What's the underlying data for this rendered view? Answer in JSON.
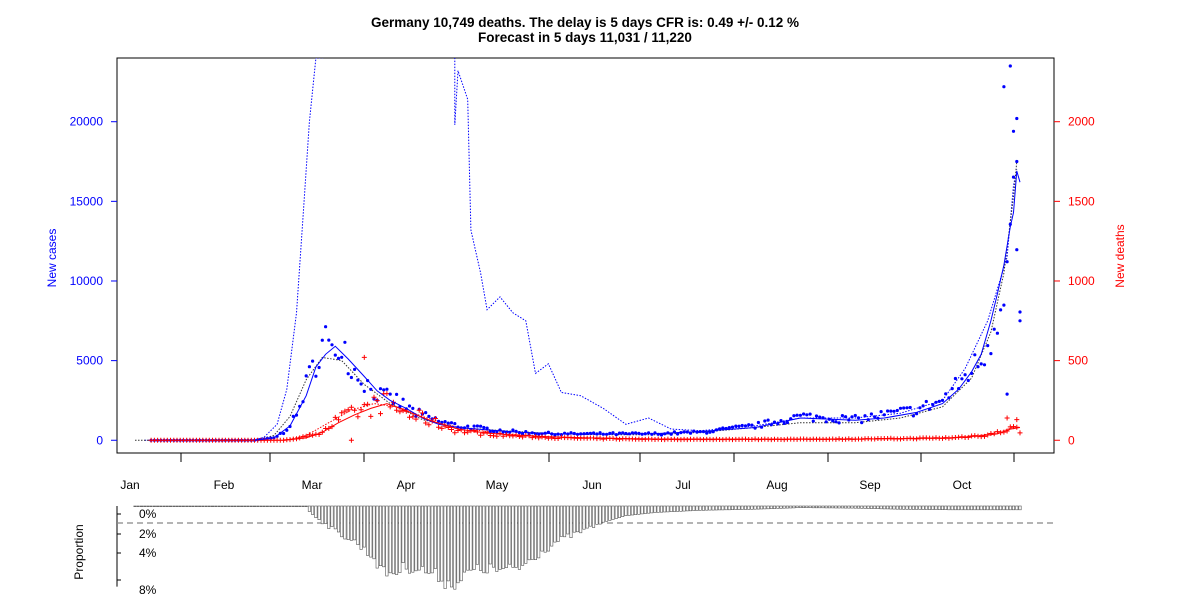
{
  "colors": {
    "cases": "#0000ff",
    "deaths": "#ff0000",
    "axis": "#000000",
    "bars": "#777777"
  },
  "chart_data": [
    {
      "type": "line",
      "title": "Germany 10,749 deaths. The delay is 5 days CFR is: 0.49 +/- 0.12 %",
      "subtitle": "Forecast in 5 days 11,031 / 11,220",
      "ylabel_left": "New cases",
      "ylabel_right": "New deaths",
      "x_range": [
        "2020-01-22",
        "2020-10-22"
      ],
      "y_left_range": [
        -800,
        24000
      ],
      "y_right_range": [
        -80,
        2400
      ],
      "y_left_ticks": [
        0,
        5000,
        10000,
        15000,
        20000
      ],
      "y_right_ticks": [
        0,
        500,
        1000,
        1500,
        2000
      ],
      "x_tick_labels": [
        "Jan",
        "Feb",
        "Mar",
        "Apr",
        "May",
        "Jun",
        "Jul",
        "Aug",
        "Sep",
        "Oct"
      ],
      "cases_anchors": [
        [
          "2020-01-27",
          0
        ],
        [
          "2020-02-28",
          0
        ],
        [
          "2020-03-05",
          150
        ],
        [
          "2020-03-08",
          500
        ],
        [
          "2020-03-12",
          1500
        ],
        [
          "2020-03-15",
          3500
        ],
        [
          "2020-03-18",
          5000
        ],
        [
          "2020-03-21",
          6500
        ],
        [
          "2020-03-23",
          5200
        ],
        [
          "2020-03-26",
          6500
        ],
        [
          "2020-03-29",
          4500
        ],
        [
          "2020-04-01",
          4000
        ],
        [
          "2020-04-04",
          3200
        ],
        [
          "2020-04-07",
          2800
        ],
        [
          "2020-04-12",
          2500
        ],
        [
          "2020-04-18",
          1700
        ],
        [
          "2020-04-25",
          1200
        ],
        [
          "2020-05-01",
          900
        ],
        [
          "2020-05-10",
          700
        ],
        [
          "2020-05-20",
          500
        ],
        [
          "2020-06-01",
          400
        ],
        [
          "2020-06-15",
          400
        ],
        [
          "2020-07-01",
          400
        ],
        [
          "2020-07-15",
          500
        ],
        [
          "2020-08-01",
          900
        ],
        [
          "2020-08-15",
          1500
        ],
        [
          "2020-09-01",
          1300
        ],
        [
          "2020-09-10",
          1600
        ],
        [
          "2020-09-20",
          1900
        ],
        [
          "2020-09-28",
          2500
        ],
        [
          "2020-10-03",
          3500
        ],
        [
          "2020-10-07",
          4500
        ],
        [
          "2020-10-10",
          5000
        ],
        [
          "2020-10-13",
          6500
        ],
        [
          "2020-10-15",
          8000
        ],
        [
          "2020-10-17",
          10000
        ],
        [
          "2020-10-19",
          13000
        ],
        [
          "2020-10-20",
          15000
        ],
        [
          "2020-10-21",
          12000
        ],
        [
          "2020-10-22",
          7500
        ]
      ],
      "cases_outliers": [
        [
          "2020-10-17",
          22200
        ],
        [
          "2020-10-19",
          23500
        ],
        [
          "2020-10-20",
          19400
        ],
        [
          "2020-10-21",
          20200
        ],
        [
          "2020-10-21",
          17500
        ],
        [
          "2020-10-22",
          7500
        ],
        [
          "2020-10-18",
          2900
        ]
      ],
      "cases_smooth": [
        [
          "2020-02-28",
          0
        ],
        [
          "2020-03-05",
          150
        ],
        [
          "2020-03-10",
          900
        ],
        [
          "2020-03-15",
          2800
        ],
        [
          "2020-03-18",
          4600
        ],
        [
          "2020-03-21",
          5400
        ],
        [
          "2020-03-24",
          5900
        ],
        [
          "2020-03-28",
          5100
        ],
        [
          "2020-04-02",
          4000
        ],
        [
          "2020-04-06",
          3100
        ],
        [
          "2020-04-10",
          2500
        ],
        [
          "2020-04-15",
          2000
        ],
        [
          "2020-04-20",
          1400
        ],
        [
          "2020-04-25",
          1000
        ],
        [
          "2020-05-01",
          800
        ],
        [
          "2020-05-10",
          650
        ],
        [
          "2020-05-20",
          500
        ],
        [
          "2020-06-01",
          400
        ],
        [
          "2020-06-15",
          380
        ],
        [
          "2020-07-01",
          420
        ],
        [
          "2020-07-15",
          550
        ],
        [
          "2020-08-01",
          800
        ],
        [
          "2020-08-15",
          1400
        ],
        [
          "2020-09-01",
          1250
        ],
        [
          "2020-09-10",
          1400
        ],
        [
          "2020-09-20",
          1750
        ],
        [
          "2020-09-28",
          2300
        ],
        [
          "2020-10-03",
          3200
        ],
        [
          "2020-10-07",
          4300
        ],
        [
          "2020-10-10",
          5400
        ],
        [
          "2020-10-13",
          7500
        ],
        [
          "2020-10-15",
          9200
        ],
        [
          "2020-10-17",
          11000
        ],
        [
          "2020-10-19",
          13400
        ],
        [
          "2020-10-20",
          14300
        ],
        [
          "2020-10-21",
          16900
        ],
        [
          "2020-10-22",
          16200
        ]
      ],
      "deaths_anchors": [
        [
          "2020-01-27",
          0
        ],
        [
          "2020-03-08",
          0
        ],
        [
          "2020-03-15",
          20
        ],
        [
          "2020-03-20",
          60
        ],
        [
          "2020-03-25",
          130
        ],
        [
          "2020-03-30",
          170
        ],
        [
          "2020-04-03",
          200
        ],
        [
          "2020-04-08",
          240
        ],
        [
          "2020-04-12",
          200
        ],
        [
          "2020-04-16",
          160
        ],
        [
          "2020-04-20",
          140
        ],
        [
          "2020-04-25",
          100
        ],
        [
          "2020-05-01",
          60
        ],
        [
          "2020-05-10",
          40
        ],
        [
          "2020-05-20",
          25
        ],
        [
          "2020-06-01",
          15
        ],
        [
          "2020-06-15",
          10
        ],
        [
          "2020-07-01",
          6
        ],
        [
          "2020-07-15",
          5
        ],
        [
          "2020-08-01",
          6
        ],
        [
          "2020-08-15",
          6
        ],
        [
          "2020-09-01",
          8
        ],
        [
          "2020-09-15",
          10
        ],
        [
          "2020-10-01",
          15
        ],
        [
          "2020-10-10",
          30
        ],
        [
          "2020-10-15",
          45
        ],
        [
          "2020-10-19",
          80
        ],
        [
          "2020-10-22",
          60
        ]
      ],
      "deaths_outliers": [
        [
          "2020-04-02",
          520
        ],
        [
          "2020-03-29",
          0
        ],
        [
          "2020-10-18",
          140
        ],
        [
          "2020-10-21",
          130
        ]
      ],
      "deaths_smooth": [
        [
          "2020-03-08",
          0
        ],
        [
          "2020-03-15",
          15
        ],
        [
          "2020-03-20",
          50
        ],
        [
          "2020-03-25",
          110
        ],
        [
          "2020-03-30",
          160
        ],
        [
          "2020-04-04",
          200
        ],
        [
          "2020-04-09",
          230
        ],
        [
          "2020-04-13",
          200
        ],
        [
          "2020-04-18",
          160
        ],
        [
          "2020-04-23",
          120
        ],
        [
          "2020-05-01",
          70
        ],
        [
          "2020-05-10",
          45
        ],
        [
          "2020-05-20",
          30
        ],
        [
          "2020-06-01",
          20
        ],
        [
          "2020-06-15",
          12
        ],
        [
          "2020-07-01",
          8
        ],
        [
          "2020-08-01",
          6
        ],
        [
          "2020-09-01",
          7
        ],
        [
          "2020-10-01",
          14
        ],
        [
          "2020-10-10",
          28
        ],
        [
          "2020-10-15",
          40
        ],
        [
          "2020-10-19",
          70
        ],
        [
          "2020-10-22",
          80
        ]
      ],
      "forecast_dotted_blue": [
        [
          "2020-01-25",
          0
        ],
        [
          "2020-02-28",
          0
        ],
        [
          "2020-03-02",
          200
        ],
        [
          "2020-03-06",
          1000
        ],
        [
          "2020-03-09",
          3200
        ],
        [
          "2020-03-12",
          8000
        ],
        [
          "2020-03-14",
          14000
        ],
        [
          "2020-03-16",
          20000
        ],
        [
          "2020-03-18",
          24000
        ],
        [
          "2020-04-30",
          24500
        ],
        [
          "2020-04-30",
          19800
        ],
        [
          "2020-05-01",
          23200
        ],
        [
          "2020-05-04",
          21400
        ],
        [
          "2020-05-05",
          13200
        ],
        [
          "2020-05-08",
          10500
        ],
        [
          "2020-05-10",
          8200
        ],
        [
          "2020-05-14",
          9000
        ],
        [
          "2020-05-18",
          8000
        ],
        [
          "2020-05-22",
          7500
        ],
        [
          "2020-05-25",
          4200
        ],
        [
          "2020-05-29",
          4800
        ],
        [
          "2020-06-02",
          3000
        ],
        [
          "2020-06-08",
          2800
        ],
        [
          "2020-06-15",
          2000
        ],
        [
          "2020-06-22",
          1000
        ],
        [
          "2020-06-29",
          1400
        ],
        [
          "2020-07-06",
          700
        ],
        [
          "2020-07-15",
          600
        ],
        [
          "2020-08-01",
          900
        ],
        [
          "2020-08-15",
          1400
        ],
        [
          "2020-09-01",
          1400
        ],
        [
          "2020-09-15",
          1700
        ],
        [
          "2020-09-28",
          2500
        ],
        [
          "2020-10-05",
          4500
        ],
        [
          "2020-10-12",
          7500
        ],
        [
          "2020-10-18",
          11500
        ],
        [
          "2020-10-20",
          16000
        ],
        [
          "2020-10-21",
          17000
        ]
      ],
      "forecast_dotted_black": [
        [
          "2020-01-22",
          0
        ],
        [
          "2020-02-28",
          0
        ],
        [
          "2020-03-05",
          300
        ],
        [
          "2020-03-10",
          1500
        ],
        [
          "2020-03-15",
          3800
        ],
        [
          "2020-03-20",
          5200
        ],
        [
          "2020-03-26",
          5000
        ],
        [
          "2020-04-02",
          3500
        ],
        [
          "2020-04-10",
          2300
        ],
        [
          "2020-04-20",
          1300
        ],
        [
          "2020-05-01",
          800
        ],
        [
          "2020-05-15",
          600
        ],
        [
          "2020-06-01",
          400
        ],
        [
          "2020-06-15",
          350
        ],
        [
          "2020-07-01",
          350
        ],
        [
          "2020-07-15",
          500
        ],
        [
          "2020-08-01",
          800
        ],
        [
          "2020-08-15",
          1100
        ],
        [
          "2020-09-01",
          1100
        ],
        [
          "2020-09-15",
          1400
        ],
        [
          "2020-09-28",
          2100
        ],
        [
          "2020-10-07",
          3900
        ],
        [
          "2020-10-13",
          6800
        ],
        [
          "2020-10-17",
          10500
        ],
        [
          "2020-10-20",
          15300
        ],
        [
          "2020-10-21",
          17500
        ]
      ],
      "forecast_dotted_red": [
        [
          "2020-03-08",
          0
        ],
        [
          "2020-03-15",
          30
        ],
        [
          "2020-03-22",
          110
        ],
        [
          "2020-03-29",
          190
        ],
        [
          "2020-04-05",
          230
        ],
        [
          "2020-04-12",
          210
        ],
        [
          "2020-04-20",
          150
        ],
        [
          "2020-05-01",
          80
        ],
        [
          "2020-05-15",
          40
        ],
        [
          "2020-06-01",
          20
        ],
        [
          "2020-07-01",
          8
        ],
        [
          "2020-08-01",
          6
        ],
        [
          "2020-09-01",
          8
        ],
        [
          "2020-10-01",
          15
        ],
        [
          "2020-10-10",
          30
        ],
        [
          "2020-10-17",
          60
        ],
        [
          "2020-10-21",
          90
        ]
      ]
    },
    {
      "type": "bar",
      "ylabel": "Proportion",
      "y_tick_labels": [
        "0%",
        "2%",
        "4%",
        "8%"
      ],
      "y_ticks": [
        0,
        2,
        4,
        8
      ],
      "reference_line": 1.0,
      "x_range": [
        "2020-01-22",
        "2020-10-22"
      ],
      "anchors": [
        [
          "2020-01-22",
          0.05
        ],
        [
          "2020-03-15",
          0.05
        ],
        [
          "2020-03-16",
          0.5
        ],
        [
          "2020-03-20",
          1.5
        ],
        [
          "2020-03-25",
          2.5
        ],
        [
          "2020-03-30",
          3.3
        ],
        [
          "2020-04-05",
          4.8
        ],
        [
          "2020-04-08",
          6.2
        ],
        [
          "2020-04-12",
          6.1
        ],
        [
          "2020-04-15",
          5.6
        ],
        [
          "2020-04-20",
          5.9
        ],
        [
          "2020-04-25",
          6.5
        ],
        [
          "2020-04-28",
          7.2
        ],
        [
          "2020-05-01",
          7.0
        ],
        [
          "2020-05-05",
          6.0
        ],
        [
          "2020-05-10",
          5.8
        ],
        [
          "2020-05-15",
          6.0
        ],
        [
          "2020-05-20",
          5.7
        ],
        [
          "2020-05-25",
          4.6
        ],
        [
          "2020-06-01",
          3.2
        ],
        [
          "2020-06-08",
          2.4
        ],
        [
          "2020-06-15",
          1.5
        ],
        [
          "2020-06-22",
          0.9
        ],
        [
          "2020-07-01",
          0.6
        ],
        [
          "2020-07-15",
          0.4
        ],
        [
          "2020-08-01",
          0.3
        ],
        [
          "2020-08-15",
          0.15
        ],
        [
          "2020-09-01",
          0.2
        ],
        [
          "2020-09-15",
          0.3
        ],
        [
          "2020-10-01",
          0.35
        ],
        [
          "2020-10-22",
          0.35
        ]
      ]
    }
  ]
}
